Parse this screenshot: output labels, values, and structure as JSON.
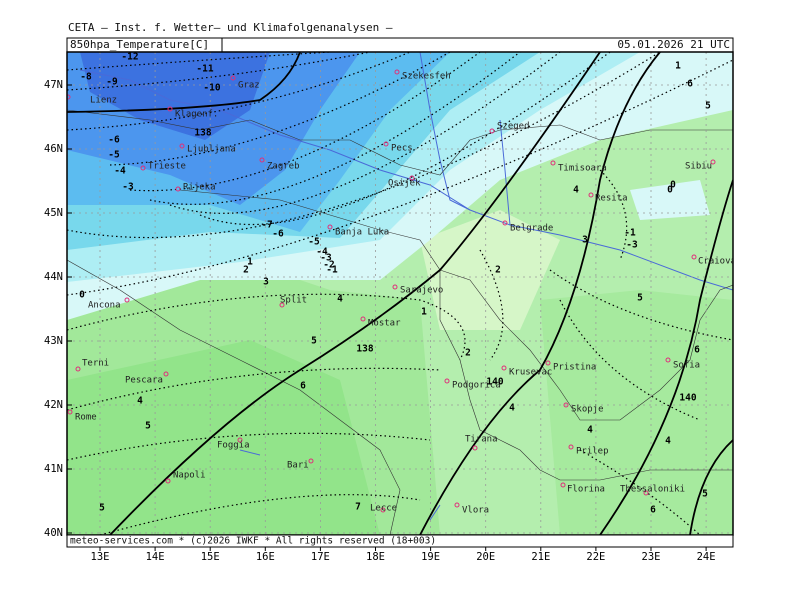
{
  "header": {
    "institute": "CETA — Inst. f. Wetter— und Klimafolgenanalysen —",
    "product": "850hpa_Temperature[C]",
    "valid": "05.01.2026 21 UTC",
    "footer": "meteo-services.com * (c)2026 IWKF * All rights reserved (18+003)"
  },
  "lat_labels": [
    "47N",
    "46N",
    "45N",
    "44N",
    "43N",
    "42N",
    "41N",
    "40N"
  ],
  "lon_labels": [
    "13E",
    "14E",
    "15E",
    "16E",
    "17E",
    "18E",
    "19E",
    "20E",
    "21E",
    "22E",
    "23E",
    "24E"
  ],
  "cities": [
    {
      "name": "Graz"
    },
    {
      "name": "Szekesfeh"
    },
    {
      "name": "Lienz"
    },
    {
      "name": "Klagenf."
    },
    {
      "name": "Szeged"
    },
    {
      "name": "Ljubljana"
    },
    {
      "name": "Pecs"
    },
    {
      "name": "Zagreb"
    },
    {
      "name": "Trieste"
    },
    {
      "name": "Rijeka"
    },
    {
      "name": "Osijek"
    },
    {
      "name": "Timisoara"
    },
    {
      "name": "Sibiu"
    },
    {
      "name": "Resita"
    },
    {
      "name": "Banja Luka"
    },
    {
      "name": "Belgrade"
    },
    {
      "name": "Craiova"
    },
    {
      "name": "Sarajevo"
    },
    {
      "name": "Ancona"
    },
    {
      "name": "Split"
    },
    {
      "name": "Mostar"
    },
    {
      "name": "Terni"
    },
    {
      "name": "Pescara"
    },
    {
      "name": "Podgorica"
    },
    {
      "name": "Krusevac"
    },
    {
      "name": "Pristina"
    },
    {
      "name": "Sofia"
    },
    {
      "name": "Rome"
    },
    {
      "name": "Skopje"
    },
    {
      "name": "Tirana"
    },
    {
      "name": "Prilep"
    },
    {
      "name": "Foggia"
    },
    {
      "name": "Bari"
    },
    {
      "name": "Napoli"
    },
    {
      "name": "Florina"
    },
    {
      "name": "Thessaloniki"
    },
    {
      "name": "Vlora"
    },
    {
      "name": "Lecce"
    }
  ],
  "contour_labels": [
    "-12",
    "-11",
    "-10",
    "-9",
    "-8",
    "-6",
    "-5",
    "-4",
    "-3",
    "138",
    "-7",
    "-6",
    "-5",
    "-4",
    "-3",
    "-2",
    "-1",
    "0",
    "0",
    "1",
    "2",
    "3",
    "4",
    "5",
    "6",
    "7",
    "5",
    "4",
    "138",
    "2",
    "140",
    "4",
    "5",
    "4",
    "5",
    "6",
    "-1",
    "-3",
    "1",
    "2",
    "3",
    "4",
    "0",
    "6",
    "140",
    "4",
    "5",
    "1",
    "6",
    "5"
  ]
}
